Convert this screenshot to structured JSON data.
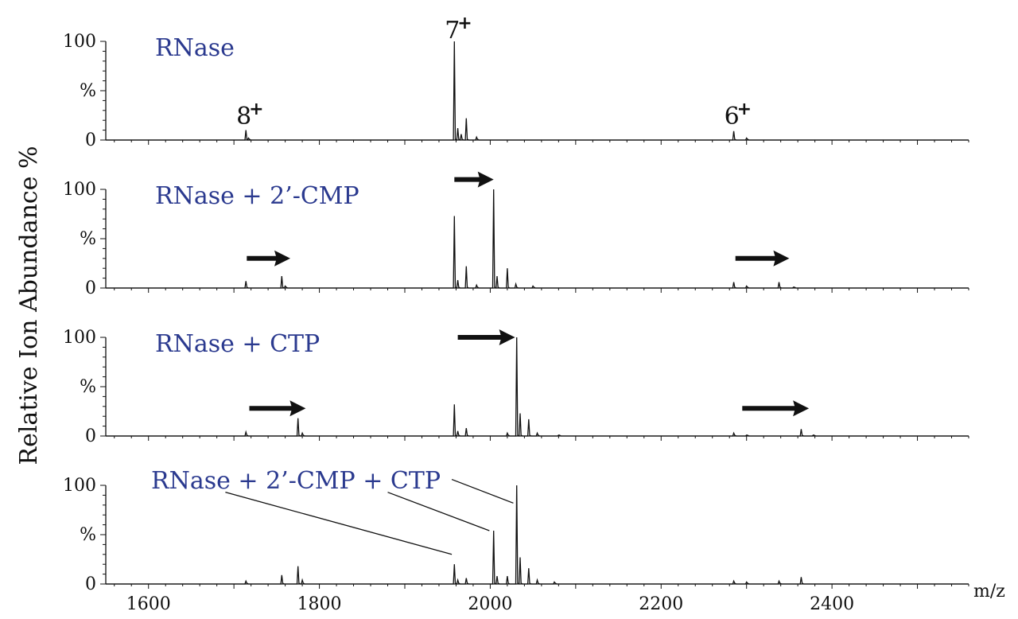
{
  "chart_data": {
    "type": "line",
    "ylabel": "Relative Ion Abundance %",
    "xlabel": "m/z",
    "xlim": [
      1550,
      2560
    ],
    "ylim": [
      0,
      100
    ],
    "x_ticks": [
      1600,
      1800,
      2000,
      2200,
      2400
    ],
    "y_ticks": [
      "0",
      "%",
      "100"
    ],
    "panels": [
      {
        "title": "RNase",
        "peaks": [
          {
            "x": 1714,
            "y": 10
          },
          {
            "x": 1717,
            "y": 2
          },
          {
            "x": 1958,
            "y": 100
          },
          {
            "x": 1962,
            "y": 12
          },
          {
            "x": 1966,
            "y": 6
          },
          {
            "x": 1972,
            "y": 22
          },
          {
            "x": 1984,
            "y": 3
          },
          {
            "x": 2285,
            "y": 9
          },
          {
            "x": 2300,
            "y": 2
          }
        ],
        "charge_labels": [
          {
            "text": "8",
            "sup": "+",
            "x": 1714
          },
          {
            "text": "7",
            "sup": "+",
            "x": 1958
          },
          {
            "text": "6",
            "sup": "+",
            "x": 2285
          }
        ],
        "arrows": []
      },
      {
        "title": "RNase + 2’-CMP",
        "peaks": [
          {
            "x": 1714,
            "y": 7
          },
          {
            "x": 1756,
            "y": 12
          },
          {
            "x": 1760,
            "y": 2
          },
          {
            "x": 1958,
            "y": 73
          },
          {
            "x": 1962,
            "y": 8
          },
          {
            "x": 1972,
            "y": 22
          },
          {
            "x": 1984,
            "y": 3
          },
          {
            "x": 2004,
            "y": 100
          },
          {
            "x": 2008,
            "y": 12
          },
          {
            "x": 2020,
            "y": 20
          },
          {
            "x": 2030,
            "y": 4
          },
          {
            "x": 2050,
            "y": 2
          },
          {
            "x": 2285,
            "y": 6
          },
          {
            "x": 2300,
            "y": 2
          },
          {
            "x": 2338,
            "y": 6
          },
          {
            "x": 2355,
            "y": 1
          }
        ],
        "charge_labels": [],
        "arrows": [
          {
            "x1": 1715,
            "x2": 1766,
            "y": 30
          },
          {
            "x1": 1958,
            "x2": 2004,
            "y": 110
          },
          {
            "x1": 2287,
            "x2": 2350,
            "y": 30
          }
        ]
      },
      {
        "title": "RNase + CTP",
        "peaks": [
          {
            "x": 1714,
            "y": 4
          },
          {
            "x": 1775,
            "y": 18
          },
          {
            "x": 1780,
            "y": 3
          },
          {
            "x": 1958,
            "y": 32
          },
          {
            "x": 1962,
            "y": 5
          },
          {
            "x": 1972,
            "y": 8
          },
          {
            "x": 2020,
            "y": 3
          },
          {
            "x": 2031,
            "y": 100
          },
          {
            "x": 2035,
            "y": 23
          },
          {
            "x": 2045,
            "y": 17
          },
          {
            "x": 2055,
            "y": 3
          },
          {
            "x": 2080,
            "y": 1
          },
          {
            "x": 2285,
            "y": 3
          },
          {
            "x": 2300,
            "y": 1
          },
          {
            "x": 2364,
            "y": 7
          },
          {
            "x": 2378,
            "y": 1
          }
        ],
        "charge_labels": [],
        "arrows": [
          {
            "x1": 1718,
            "x2": 1784,
            "y": 28
          },
          {
            "x1": 1962,
            "x2": 2029,
            "y": 100
          },
          {
            "x1": 2295,
            "x2": 2373,
            "y": 28
          }
        ]
      },
      {
        "title": "RNase + 2’-CMP + CTP",
        "peaks": [
          {
            "x": 1714,
            "y": 3
          },
          {
            "x": 1756,
            "y": 9
          },
          {
            "x": 1775,
            "y": 18
          },
          {
            "x": 1780,
            "y": 4
          },
          {
            "x": 1958,
            "y": 20
          },
          {
            "x": 1962,
            "y": 4
          },
          {
            "x": 1972,
            "y": 6
          },
          {
            "x": 2004,
            "y": 54
          },
          {
            "x": 2008,
            "y": 8
          },
          {
            "x": 2020,
            "y": 8
          },
          {
            "x": 2031,
            "y": 100
          },
          {
            "x": 2035,
            "y": 27
          },
          {
            "x": 2045,
            "y": 16
          },
          {
            "x": 2055,
            "y": 4
          },
          {
            "x": 2075,
            "y": 2
          },
          {
            "x": 2285,
            "y": 3
          },
          {
            "x": 2300,
            "y": 2
          },
          {
            "x": 2338,
            "y": 3
          },
          {
            "x": 2364,
            "y": 7
          }
        ],
        "charge_labels": [],
        "leaders": [
          {
            "from_x": 1690,
            "from_y": 93,
            "to_x": 1955,
            "to_y": 30
          },
          {
            "from_x": 1880,
            "from_y": 93,
            "to_x": 1999,
            "to_y": 54
          },
          {
            "from_x": 1955,
            "from_y": 106,
            "to_x": 2027,
            "to_y": 82
          }
        ],
        "arrows": []
      }
    ]
  }
}
